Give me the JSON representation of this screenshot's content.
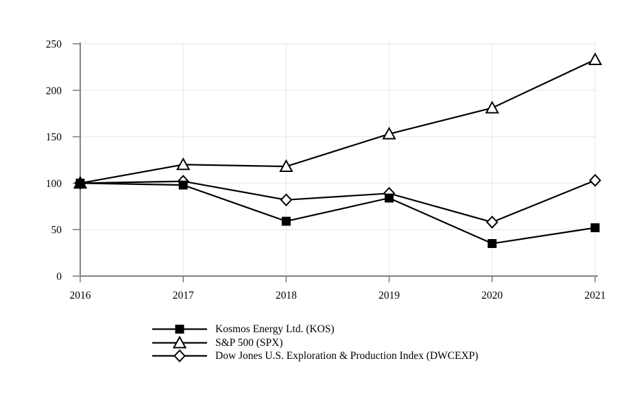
{
  "chart_data": {
    "type": "line",
    "title": "",
    "xlabel": "",
    "ylabel": "",
    "categories": [
      "2016",
      "2017",
      "2018",
      "2019",
      "2020",
      "2021"
    ],
    "series": [
      {
        "name": "Kosmos Energy Ltd. (KOS)",
        "marker": "filled-square",
        "color": "#000000",
        "values": [
          100,
          98,
          59,
          84,
          35,
          52
        ]
      },
      {
        "name": "S&P 500 (SPX)",
        "marker": "open-triangle",
        "color": "#000000",
        "values": [
          100,
          120,
          118,
          153,
          181,
          233
        ]
      },
      {
        "name": "Dow Jones U.S. Exploration & Production Index (DWCEXP)",
        "marker": "open-diamond",
        "color": "#000000",
        "values": [
          100,
          102,
          82,
          89,
          58,
          103
        ]
      }
    ],
    "ylim": [
      0,
      250
    ],
    "yticks": [
      0,
      50,
      100,
      150,
      200,
      250
    ],
    "grid": true,
    "legend_position": "bottom-left"
  },
  "style": {
    "axis_color": "#808080",
    "grid_color": "#e6e6e6",
    "line_color": "#000000",
    "text_color": "#000000",
    "marker_fill": "#ffffff",
    "background": "#ffffff"
  }
}
